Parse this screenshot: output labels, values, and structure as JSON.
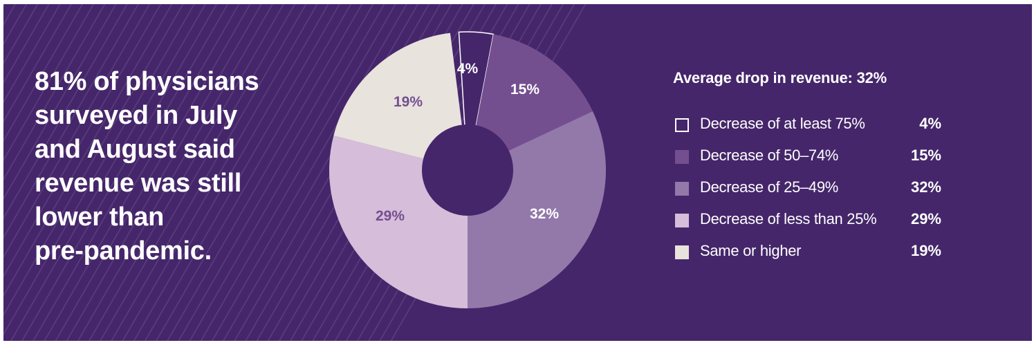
{
  "headline": {
    "lines": [
      "81% of physicians",
      "surveyed in July",
      "and August said",
      "revenue was still",
      "lower than",
      "pre-pandemic."
    ]
  },
  "legend": {
    "title": "Average drop in revenue: 32%",
    "items": [
      {
        "label": "Decrease of at least 75%",
        "value": "4%",
        "color": "#45266A",
        "outlined": true
      },
      {
        "label": "Decrease of 50–74%",
        "value": "15%",
        "color": "#744F8F",
        "outlined": false
      },
      {
        "label": "Decrease of 25–49%",
        "value": "32%",
        "color": "#9378AA",
        "outlined": false
      },
      {
        "label": "Decrease of less than 25%",
        "value": "29%",
        "color": "#D6BDDA",
        "outlined": false
      },
      {
        "label": "Same or higher",
        "value": "19%",
        "color": "#E8E3DD",
        "outlined": false
      }
    ]
  },
  "colors": {
    "background": "#45266A",
    "stripe": "#5A3D7D",
    "label_dark": "#744F8F",
    "label_light": "#FFFFFF"
  },
  "chart_data": {
    "type": "pie",
    "variant": "donut",
    "title": "Average drop in revenue: 32%",
    "categories": [
      "Decrease of at least 75%",
      "Decrease of 50–74%",
      "Decrease of 25–49%",
      "Decrease of less than 25%",
      "Same or higher"
    ],
    "values": [
      4,
      15,
      32,
      29,
      19
    ],
    "unit": "%",
    "data_labels": [
      "4%",
      "15%",
      "32%",
      "29%",
      "19%"
    ],
    "label_colors": [
      "#FFFFFF",
      "#FFFFFF",
      "#FFFFFF",
      "#744F8F",
      "#744F8F"
    ],
    "colors": [
      "#45266A",
      "#744F8F",
      "#9378AA",
      "#D6BDDA",
      "#E8E3DD"
    ],
    "legend_position": "right",
    "annotation": "81% of physicians surveyed in July and August said revenue was still lower than pre-pandemic."
  }
}
